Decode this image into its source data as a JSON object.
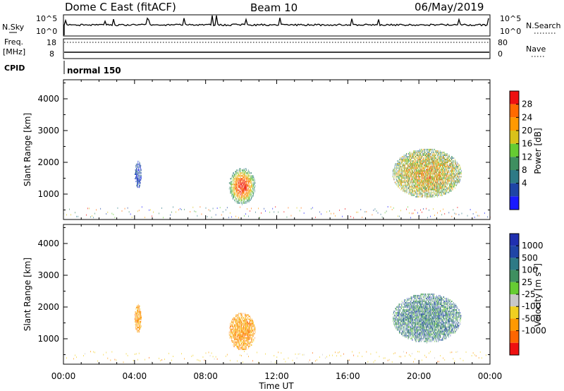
{
  "header": {
    "station": "Dome C East (fitACF)",
    "beam": "Beam 10",
    "date": "06/May/2019"
  },
  "status_panel": {
    "nsky_label": "N.Sky",
    "nsearch_label": "N.Search",
    "noise_ticks_left": [
      "10^5",
      "10^0"
    ],
    "noise_ticks_right": [
      "10^5",
      "10^0"
    ],
    "freq_label_line1": "Freq.",
    "freq_label_line2": "[MHz]",
    "freq_ticks": [
      "18",
      "8"
    ],
    "nave_label": "Nave",
    "nave_ticks": [
      "80",
      "0"
    ],
    "cpid_label": "CPID",
    "cpid_value": "normal 150"
  },
  "colors": {
    "power_scale": [
      "#1a1aff",
      "#1f45a6",
      "#2e7a86",
      "#3f8f60",
      "#66cc33",
      "#d9c21a",
      "#ff9900",
      "#ff6a00",
      "#ee1111"
    ],
    "velocity_scale": [
      "#ee1111",
      "#ff6600",
      "#ff9900",
      "#f0d020",
      "#c8c8c8",
      "#66cc33",
      "#3f8f60",
      "#2e7a86",
      "#1f45a6",
      "#2030b0"
    ]
  },
  "chart_data": [
    {
      "type": "heatmap",
      "name": "power",
      "ylabel": "Slant Range [km]",
      "yticks": [
        "1000",
        "2000",
        "3000",
        "4000"
      ],
      "ylim": [
        200,
        4600
      ],
      "xlim": [
        0,
        24
      ],
      "xticks": [
        "00:00",
        "04:00",
        "08:00",
        "12:00",
        "16:00",
        "20:00",
        "00:00"
      ],
      "colorbar": {
        "label": "Power [dB]",
        "ticks": [
          "4",
          "8",
          "12",
          "16",
          "20",
          "24",
          "28"
        ]
      },
      "echo_regions": [
        {
          "t0": 4.0,
          "t1": 4.4,
          "r0": 1150,
          "r1": 2050,
          "dominant": "low"
        },
        {
          "t0": 9.3,
          "t1": 10.8,
          "r0": 650,
          "r1": 1800,
          "dominant": "high"
        },
        {
          "t0": 18.5,
          "t1": 22.4,
          "r0": 850,
          "r1": 2400,
          "dominant": "mixed"
        }
      ]
    },
    {
      "type": "heatmap",
      "name": "velocity",
      "ylabel": "Slant Range [km]",
      "yticks": [
        "1000",
        "2000",
        "3000",
        "4000"
      ],
      "ylim": [
        200,
        4600
      ],
      "xlim": [
        0,
        24
      ],
      "xticks": [
        "00:00",
        "04:00",
        "08:00",
        "12:00",
        "16:00",
        "20:00",
        "00:00"
      ],
      "xlabel": "Time UT",
      "colorbar": {
        "label": "Velocity [m s^-1]",
        "ticks": [
          "1000",
          "500",
          "100",
          "25",
          "-25",
          "-100",
          "-500",
          "-1000"
        ]
      },
      "echo_regions": [
        {
          "t0": 4.0,
          "t1": 4.4,
          "r0": 1150,
          "r1": 2050,
          "dominant": "negative"
        },
        {
          "t0": 9.3,
          "t1": 10.8,
          "r0": 600,
          "r1": 1800,
          "dominant": "negative"
        },
        {
          "t0": 18.5,
          "t1": 22.4,
          "r0": 850,
          "r1": 2400,
          "dominant": "positive"
        }
      ]
    }
  ]
}
